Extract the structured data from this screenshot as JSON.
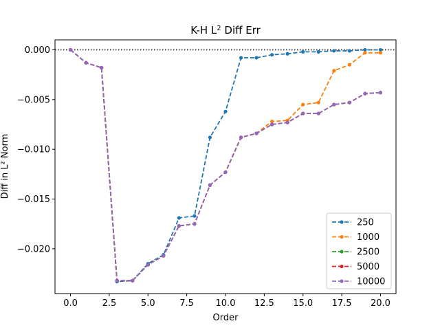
{
  "chart_data": {
    "type": "line",
    "title": "K-H L² Diff Err",
    "xlabel": "Order",
    "ylabel": "Diff in L² Norm",
    "xlim": [
      -1,
      21
    ],
    "ylim": [
      -0.0245,
      0.001
    ],
    "x_ticks": [
      0,
      2.5,
      5,
      7.5,
      10,
      12.5,
      15,
      17.5,
      20
    ],
    "x_tick_labels": [
      "0.0",
      "2.5",
      "5.0",
      "7.5",
      "10.0",
      "12.5",
      "15.0",
      "17.5",
      "20.0"
    ],
    "y_ticks": [
      0,
      -0.005,
      -0.01,
      -0.015,
      -0.02
    ],
    "y_tick_labels": [
      "0.000",
      "−0.005",
      "−0.010",
      "−0.015",
      "−0.020"
    ],
    "reference_line": {
      "y": 0,
      "style": "dotted"
    },
    "grid": false,
    "legend_position": "lower-right",
    "x": [
      0,
      1,
      2,
      3,
      4,
      5,
      6,
      7,
      8,
      9,
      10,
      11,
      12,
      13,
      14,
      15,
      16,
      17,
      18,
      19,
      20
    ],
    "series": [
      {
        "name": "250",
        "color": "#1f77b4",
        "values": [
          0.0,
          -0.0013,
          -0.0018,
          -0.0233,
          -0.0232,
          -0.0215,
          -0.0206,
          -0.0169,
          -0.0167,
          -0.0088,
          -0.0062,
          -0.0008,
          -0.0008,
          -0.0005,
          -0.0004,
          -0.0002,
          -0.0002,
          -0.0001,
          -0.0001,
          0.0,
          0.0
        ]
      },
      {
        "name": "1000",
        "color": "#ff7f0e",
        "values": [
          0.0,
          -0.0013,
          -0.0018,
          -0.0232,
          -0.0232,
          -0.0216,
          -0.0207,
          -0.0177,
          -0.0175,
          -0.0136,
          -0.0123,
          -0.0088,
          -0.0084,
          -0.0072,
          -0.0071,
          -0.0055,
          -0.0053,
          -0.0021,
          -0.0015,
          -0.0003,
          -0.0003
        ]
      },
      {
        "name": "2500",
        "color": "#2ca02c",
        "values": [
          0.0,
          -0.0013,
          -0.0018,
          -0.0232,
          -0.0232,
          -0.0216,
          -0.0207,
          -0.0177,
          -0.0175,
          -0.0136,
          -0.0123,
          -0.0088,
          -0.0084,
          -0.0075,
          -0.0073,
          -0.0064,
          -0.0064,
          -0.0055,
          -0.0053,
          -0.0044,
          -0.0043
        ]
      },
      {
        "name": "5000",
        "color": "#d62728",
        "values": [
          0.0,
          -0.0013,
          -0.0018,
          -0.0232,
          -0.0232,
          -0.0216,
          -0.0207,
          -0.0177,
          -0.0175,
          -0.0136,
          -0.0123,
          -0.0088,
          -0.0084,
          -0.0075,
          -0.0073,
          -0.0064,
          -0.0064,
          -0.0055,
          -0.0053,
          -0.0044,
          -0.0043
        ]
      },
      {
        "name": "10000",
        "color": "#9467bd",
        "values": [
          0.0,
          -0.0013,
          -0.0018,
          -0.0232,
          -0.0232,
          -0.0216,
          -0.0207,
          -0.0177,
          -0.0175,
          -0.0136,
          -0.0123,
          -0.0088,
          -0.0084,
          -0.0075,
          -0.0073,
          -0.0064,
          -0.0064,
          -0.0055,
          -0.0053,
          -0.0044,
          -0.0043
        ]
      }
    ]
  }
}
